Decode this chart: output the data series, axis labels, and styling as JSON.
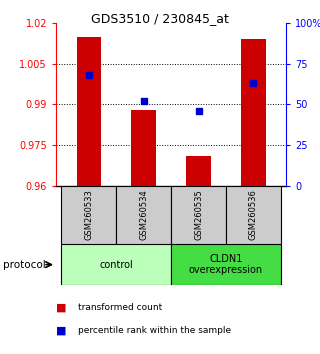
{
  "title": "GDS3510 / 230845_at",
  "samples": [
    "GSM260533",
    "GSM260534",
    "GSM260535",
    "GSM260536"
  ],
  "bar_values": [
    1.015,
    0.988,
    0.971,
    1.014
  ],
  "bar_base": 0.96,
  "percentile_values": [
    68,
    52,
    46,
    63
  ],
  "ylim_left": [
    0.96,
    1.02
  ],
  "ylim_right": [
    0,
    100
  ],
  "yticks_left": [
    0.96,
    0.975,
    0.99,
    1.005,
    1.02
  ],
  "yticks_right": [
    0,
    25,
    50,
    75,
    100
  ],
  "ytick_labels_left": [
    "0.96",
    "0.975",
    "0.99",
    "1.005",
    "1.02"
  ],
  "ytick_labels_right": [
    "0",
    "25",
    "50",
    "75",
    "100%"
  ],
  "bar_color": "#cc0000",
  "point_color": "#0000cc",
  "protocol_groups": [
    {
      "label": "control",
      "samples": [
        0,
        1
      ],
      "color": "#bbffbb"
    },
    {
      "label": "CLDN1\noverexpression",
      "samples": [
        2,
        3
      ],
      "color": "#44dd44"
    }
  ],
  "protocol_label": "protocol",
  "legend_bar_label": "transformed count",
  "legend_point_label": "percentile rank within the sample",
  "bg_color": "#ffffff",
  "sample_box_color": "#cccccc"
}
